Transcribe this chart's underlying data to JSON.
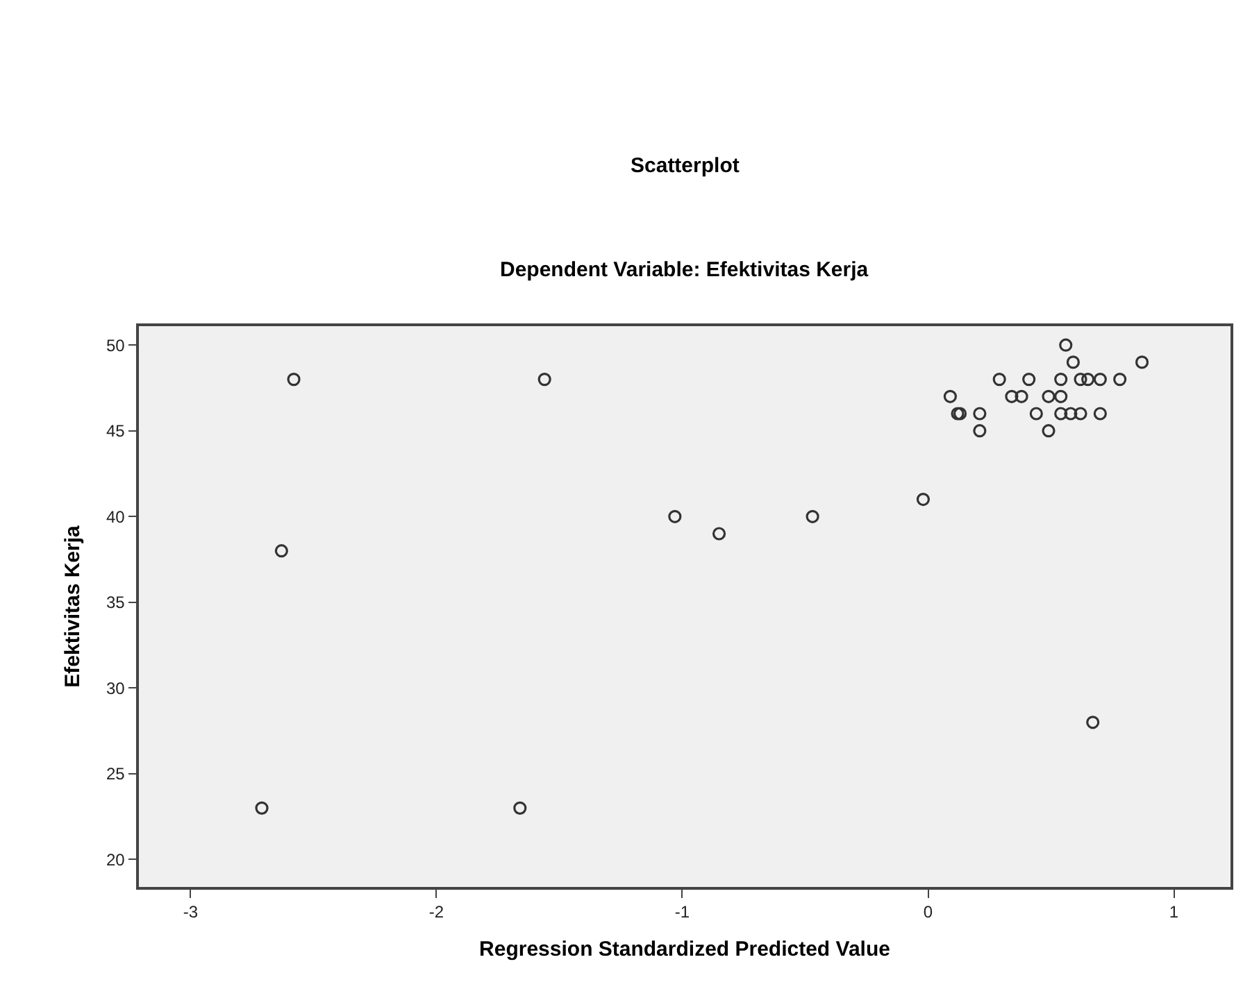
{
  "chart_data": {
    "type": "scatter",
    "title": "Scatterplot",
    "subtitle": "Dependent Variable: Efektivitas Kerja",
    "xlabel": "Regression Standardized Predicted Value",
    "ylabel": "Efektivitas Kerja",
    "x": [
      -2.71,
      -2.63,
      -2.58,
      -1.66,
      -1.56,
      -1.03,
      -0.85,
      -0.47,
      -0.02,
      0.09,
      0.12,
      0.13,
      0.21,
      0.21,
      0.29,
      0.34,
      0.38,
      0.41,
      0.44,
      0.49,
      0.49,
      0.54,
      0.54,
      0.54,
      0.56,
      0.59,
      0.58,
      0.62,
      0.62,
      0.65,
      0.67,
      0.7,
      0.7,
      0.78,
      0.87
    ],
    "series": [
      {
        "color": "#333333",
        "values": [
          23,
          38,
          48,
          23,
          48,
          40,
          39,
          40,
          41,
          47,
          46,
          46,
          46,
          45,
          48,
          47,
          47,
          48,
          46,
          47,
          45,
          48,
          47,
          46,
          50,
          49,
          46,
          48,
          46,
          48,
          28,
          48,
          46,
          48,
          49
        ]
      }
    ],
    "xlim": [
      -3.21,
      1.23
    ],
    "ylim": [
      18.4,
      51.1
    ],
    "xticks": [
      -3,
      -2,
      -1,
      0,
      1
    ],
    "yticks": [
      20,
      25,
      30,
      35,
      40,
      45,
      50
    ],
    "marker": "circle",
    "grid": false,
    "legend": false
  }
}
